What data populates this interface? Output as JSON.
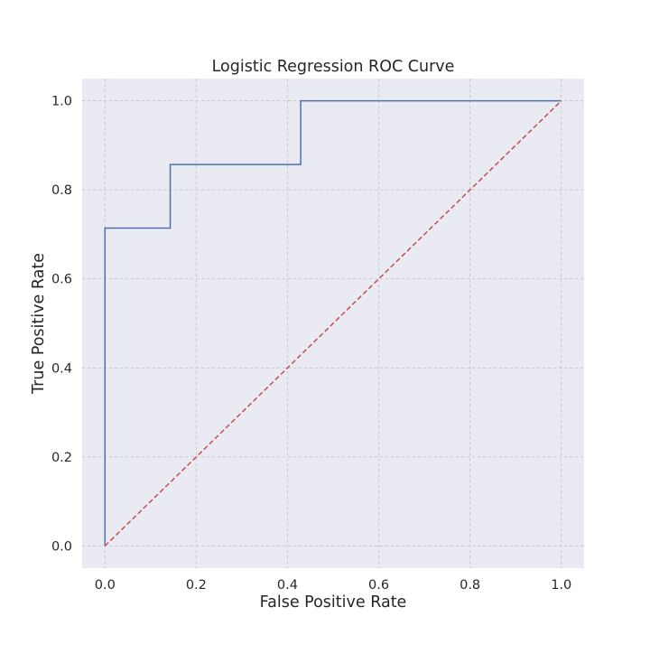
{
  "chart_data": {
    "type": "line",
    "title": "Logistic Regression ROC Curve",
    "xlabel": "False Positive Rate",
    "ylabel": "True Positive Rate",
    "xlim": [
      -0.05,
      1.05
    ],
    "ylim": [
      -0.05,
      1.05
    ],
    "x_ticks": [
      "0.0",
      "0.2",
      "0.4",
      "0.6",
      "0.8",
      "1.0"
    ],
    "y_ticks": [
      "0.0",
      "0.2",
      "0.4",
      "0.6",
      "0.8",
      "1.0"
    ],
    "grid": true,
    "legend": "none",
    "background_color": "#eaeaf2",
    "series": [
      {
        "style": "solid",
        "color": "#4c72b0",
        "x": [
          0.0,
          0.0,
          0.143,
          0.143,
          0.429,
          0.429,
          1.0
        ],
        "y": [
          0.0,
          0.714,
          0.714,
          0.857,
          0.857,
          1.0,
          1.0
        ]
      },
      {
        "style": "dashed",
        "color": "#c44e52",
        "x": [
          0.0,
          1.0
        ],
        "y": [
          0.0,
          1.0
        ]
      }
    ]
  }
}
